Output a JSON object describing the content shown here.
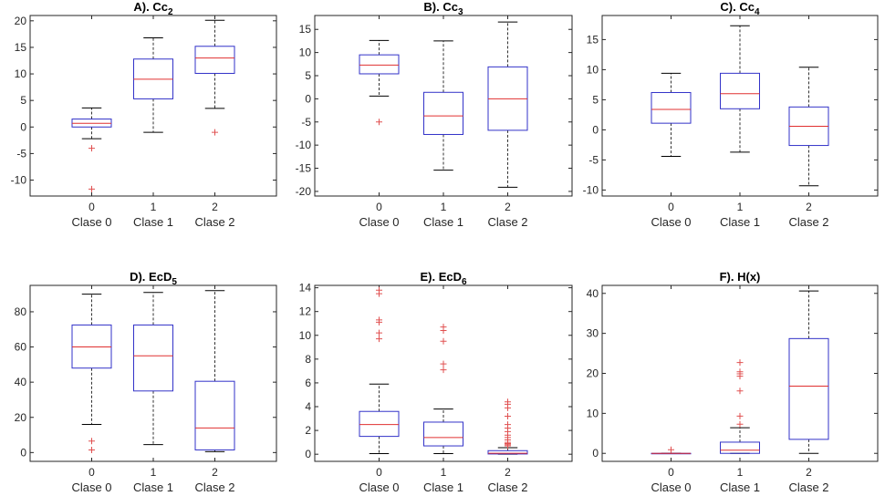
{
  "colors": {
    "box": "#3232c8",
    "median": "#e03030",
    "whisker": "#000000",
    "outlier": "#e05050",
    "axis": "#262626"
  },
  "chart_data": [
    {
      "type": "boxplot",
      "title": {
        "prefix": "A). ",
        "main": "Cc",
        "sub": "2"
      },
      "ylim": [
        -13,
        21
      ],
      "yticks": [
        -10,
        -5,
        0,
        5,
        10,
        15,
        20
      ],
      "ticks": [
        "0",
        "1",
        "2"
      ],
      "classes": [
        "Clase 0",
        "Clase 1",
        "Clase 2"
      ],
      "boxes": [
        {
          "q1": 0,
          "median": 0.7,
          "q3": 1.5,
          "low": -2.2,
          "high": 3.6,
          "outliers": [
            -4,
            -11.7
          ]
        },
        {
          "q1": 5.3,
          "median": 9,
          "q3": 12.8,
          "low": -1,
          "high": 16.8,
          "outliers": []
        },
        {
          "q1": 10.1,
          "median": 13,
          "q3": 15.2,
          "low": 3.5,
          "high": 20.1,
          "outliers": [
            -1
          ]
        }
      ]
    },
    {
      "type": "boxplot",
      "title": {
        "prefix": "B). ",
        "main": "Cc",
        "sub": "3"
      },
      "ylim": [
        -21,
        18
      ],
      "yticks": [
        -20,
        -15,
        -10,
        -5,
        0,
        5,
        10,
        15
      ],
      "ticks": [
        "0",
        "1",
        "2"
      ],
      "classes": [
        "Clase 0",
        "Clase 1",
        "Clase 2"
      ],
      "boxes": [
        {
          "q1": 5.4,
          "median": 7.3,
          "q3": 9.5,
          "low": 0.6,
          "high": 12.6,
          "outliers": [
            -5
          ]
        },
        {
          "q1": -7.7,
          "median": -3.7,
          "q3": 1.4,
          "low": -15.4,
          "high": 12.5,
          "outliers": []
        },
        {
          "q1": -6.8,
          "median": 0,
          "q3": 6.9,
          "low": -19.1,
          "high": 16.6,
          "outliers": []
        }
      ]
    },
    {
      "type": "boxplot",
      "title": {
        "prefix": "C). ",
        "main": "Cc",
        "sub": "4"
      },
      "ylim": [
        -11,
        19
      ],
      "yticks": [
        -10,
        -5,
        0,
        5,
        10,
        15
      ],
      "ticks": [
        "0",
        "1",
        "2"
      ],
      "classes": [
        "Clase 0",
        "Clase 1",
        "Clase 2"
      ],
      "boxes": [
        {
          "q1": 1.1,
          "median": 3.4,
          "q3": 6.2,
          "low": -4.4,
          "high": 9.4,
          "outliers": []
        },
        {
          "q1": 3.5,
          "median": 6,
          "q3": 9.4,
          "low": -3.7,
          "high": 17.3,
          "outliers": []
        },
        {
          "q1": -2.6,
          "median": 0.6,
          "q3": 3.8,
          "low": -9.3,
          "high": 10.4,
          "outliers": []
        }
      ]
    },
    {
      "type": "boxplot",
      "title": {
        "prefix": "D). ",
        "main": "EcD",
        "sub": "5"
      },
      "ylim": [
        -5,
        95
      ],
      "yticks": [
        0,
        20,
        40,
        60,
        80
      ],
      "ticks": [
        "0",
        "1",
        "2"
      ],
      "classes": [
        "Clase 0",
        "Clase 1",
        "Clase 2"
      ],
      "boxes": [
        {
          "q1": 48,
          "median": 60,
          "q3": 72.5,
          "low": 16,
          "high": 90,
          "outliers": [
            6.5,
            1.5
          ]
        },
        {
          "q1": 35,
          "median": 55,
          "q3": 72.5,
          "low": 4.5,
          "high": 91,
          "outliers": []
        },
        {
          "q1": 1.5,
          "median": 14,
          "q3": 40.5,
          "low": 0.5,
          "high": 92,
          "outliers": []
        }
      ]
    },
    {
      "type": "boxplot",
      "title": {
        "prefix": "E). ",
        "main": "EcD",
        "sub": "6"
      },
      "ylim": [
        -0.6,
        14.2
      ],
      "yticks": [
        0,
        2,
        4,
        6,
        8,
        10,
        12,
        14
      ],
      "ticks": [
        "0",
        "1",
        "2"
      ],
      "classes": [
        "Clase 0",
        "Clase 1",
        "Clase 2"
      ],
      "boxes": [
        {
          "q1": 1.5,
          "median": 2.5,
          "q3": 3.6,
          "low": 0.05,
          "high": 5.9,
          "outliers": [
            9.7,
            10.2,
            11.1,
            11.3,
            13.5,
            13.8
          ]
        },
        {
          "q1": 0.7,
          "median": 1.4,
          "q3": 2.7,
          "low": 0.05,
          "high": 3.8,
          "outliers": [
            7.1,
            7.6,
            9.5,
            10.4,
            10.7
          ]
        },
        {
          "q1": 0.02,
          "median": 0.08,
          "q3": 0.3,
          "low": 0,
          "high": 0.55,
          "outliers": [
            0.7,
            0.8,
            0.9,
            1.0,
            1.2,
            1.4,
            1.6,
            1.9,
            2.2,
            2.5,
            3.2,
            3.9,
            4.2,
            4.4
          ]
        }
      ]
    },
    {
      "type": "boxplot",
      "title": {
        "prefix": "F). ",
        "main": "H(x)",
        "sub": ""
      },
      "ylim": [
        -2,
        42
      ],
      "yticks": [
        0,
        10,
        20,
        30,
        40
      ],
      "ticks": [
        "0",
        "1",
        "2"
      ],
      "classes": [
        "Clase 0",
        "Clase 1",
        "Clase 2"
      ],
      "boxes": [
        {
          "q1": 0,
          "median": 0,
          "q3": 0,
          "low": 0,
          "high": 0,
          "outliers": [
            0.9
          ]
        },
        {
          "q1": 0,
          "median": 0.8,
          "q3": 2.8,
          "low": 0,
          "high": 6.4,
          "outliers": [
            7.3,
            9.3,
            15.6,
            19.3,
            19.9,
            20.4,
            22.7
          ]
        },
        {
          "q1": 3.5,
          "median": 16.8,
          "q3": 28.7,
          "low": 0,
          "high": 40.6,
          "outliers": []
        }
      ]
    }
  ]
}
